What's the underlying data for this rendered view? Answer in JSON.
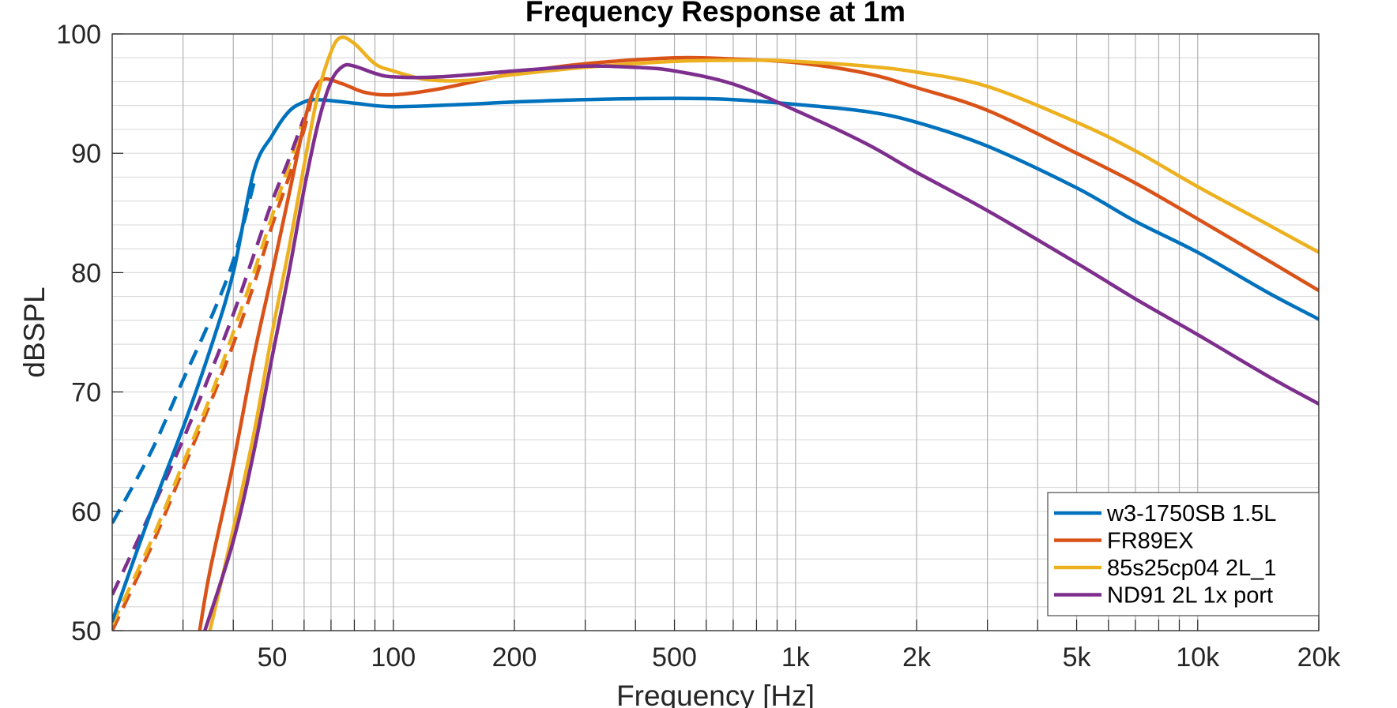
{
  "chart_data": {
    "type": "line",
    "title": "Frequency Response at 1m",
    "xlabel": "Frequency [Hz]",
    "ylabel": "dBSPL",
    "xscale": "log",
    "xlim": [
      20,
      20000
    ],
    "ylim": [
      50,
      100
    ],
    "grid": true,
    "minor_grid": true,
    "legend_location": "bottom-right",
    "xticks": [
      50,
      100,
      200,
      500,
      1000,
      2000,
      5000,
      10000,
      20000
    ],
    "xtick_labels": [
      "50",
      "100",
      "200",
      "500",
      "1k",
      "2k",
      "5k",
      "10k",
      "20k"
    ],
    "yticks": [
      50,
      60,
      70,
      80,
      90,
      100
    ],
    "ytick_labels": [
      "50",
      "60",
      "70",
      "80",
      "90",
      "100"
    ],
    "series": [
      {
        "name": "w3-1750SB 1.5L",
        "color": "#0072BD",
        "style": "solid",
        "legend": true,
        "x": [
          20,
          25,
          30,
          35,
          40,
          45,
          50,
          55,
          60,
          65,
          80,
          100,
          150,
          200,
          300,
          500,
          700,
          1000,
          1500,
          2000,
          3000,
          5000,
          7000,
          10000,
          15000,
          20000
        ],
        "y": [
          50.8,
          60,
          67,
          73.5,
          80,
          88.5,
          91.5,
          93.5,
          94.3,
          94.5,
          94.2,
          93.9,
          94.1,
          94.3,
          94.5,
          94.6,
          94.5,
          94.1,
          93.5,
          92.6,
          90.6,
          87.1,
          84.3,
          81.7,
          78.3,
          76.1
        ]
      },
      {
        "name": "FR89EX",
        "color": "#D95319",
        "style": "solid",
        "legend": true,
        "x": [
          33,
          35,
          40,
          45,
          50,
          55,
          60,
          63,
          67,
          75,
          85,
          100,
          130,
          200,
          300,
          500,
          700,
          1000,
          1500,
          2000,
          3000,
          5000,
          7000,
          10000,
          15000,
          20000
        ],
        "y": [
          50,
          55,
          64,
          73,
          80,
          86.5,
          92.5,
          95,
          96.2,
          95.8,
          95.1,
          94.9,
          95.4,
          96.7,
          97.5,
          98,
          97.9,
          97.6,
          96.7,
          95.5,
          93.6,
          90,
          87.5,
          84.5,
          81,
          78.5
        ]
      },
      {
        "name": "85s25cp04 2L_1",
        "color": "#EDB120",
        "style": "solid",
        "legend": true,
        "x": [
          35,
          40,
          45,
          50,
          55,
          60,
          65,
          70,
          74,
          80,
          90,
          100,
          120,
          150,
          200,
          300,
          500,
          800,
          1000,
          1500,
          2000,
          3000,
          5000,
          7000,
          10000,
          15000,
          20000
        ],
        "y": [
          50,
          58.5,
          66.5,
          75,
          82,
          89,
          95,
          98.5,
          99.7,
          99.2,
          97.5,
          96.9,
          96.2,
          96.1,
          96.6,
          97.2,
          97.7,
          97.8,
          97.7,
          97.3,
          96.8,
          95.6,
          92.6,
          90.2,
          87.2,
          84,
          81.7
        ]
      },
      {
        "name": "ND91 2L 1x port",
        "color": "#7E2F8E",
        "style": "solid",
        "legend": true,
        "x": [
          34,
          40,
          45,
          50,
          55,
          60,
          65,
          70,
          75,
          80,
          90,
          100,
          130,
          200,
          300,
          400,
          500,
          700,
          1000,
          1500,
          2000,
          3000,
          5000,
          7000,
          10000,
          15000,
          20000
        ],
        "y": [
          50,
          57.5,
          65,
          73,
          80,
          87,
          92.5,
          96,
          97.3,
          97.3,
          96.7,
          96.4,
          96.4,
          96.9,
          97.3,
          97.2,
          96.9,
          95.8,
          93.6,
          90.8,
          88.4,
          85.2,
          80.8,
          77.8,
          74.8,
          71.3,
          69
        ]
      },
      {
        "name": "w3-1750SB 1.5L (dashed)",
        "color": "#0072BD",
        "style": "dashed",
        "legend": false,
        "x": [
          20,
          25,
          30,
          35,
          40,
          45
        ],
        "y": [
          59,
          65,
          71,
          76,
          81,
          87.5
        ]
      },
      {
        "name": "FR89EX (dashed)",
        "color": "#D95319",
        "style": "dashed",
        "legend": false,
        "x": [
          20,
          25,
          30,
          35,
          40,
          45,
          50,
          55,
          60,
          63
        ],
        "y": [
          50,
          57,
          63.5,
          69,
          74,
          79,
          84,
          88,
          92,
          95
        ]
      },
      {
        "name": "85s25cp04 2L_1 (dashed)",
        "color": "#EDB120",
        "style": "dashed",
        "legend": false,
        "x": [
          20,
          25,
          30,
          35,
          40,
          45,
          50,
          55,
          60
        ],
        "y": [
          50.5,
          57.5,
          64,
          69.5,
          75,
          80,
          84.8,
          89,
          93
        ]
      },
      {
        "name": "ND91 2L 1x port (dashed)",
        "color": "#7E2F8E",
        "style": "dashed",
        "legend": false,
        "x": [
          20,
          25,
          30,
          35,
          40,
          45,
          50,
          55,
          60
        ],
        "y": [
          53,
          60,
          66,
          71.5,
          76.5,
          81.5,
          86,
          89.5,
          93
        ]
      }
    ]
  }
}
